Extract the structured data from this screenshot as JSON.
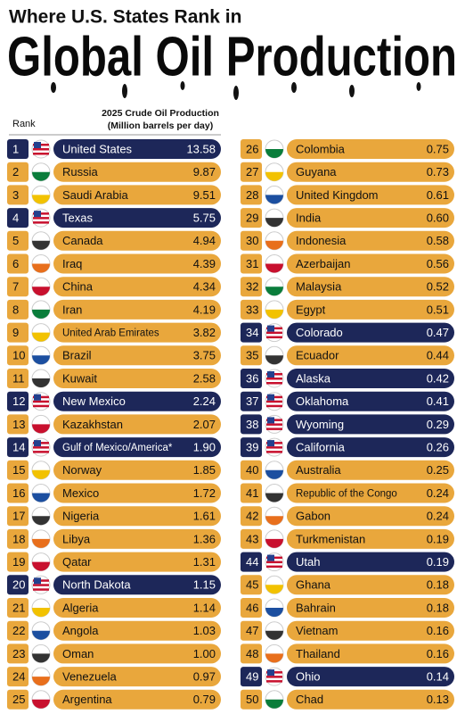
{
  "header": {
    "subtitle": "Where U.S. States Rank in",
    "title": "Global Oil Production"
  },
  "columns": {
    "rank": "Rank",
    "production": "2025 Crude Oil Production",
    "unit": "(Million barrels per day)"
  },
  "rows": [
    {
      "rank": 1,
      "name": "United States",
      "value": "13.58",
      "highlight": true
    },
    {
      "rank": 2,
      "name": "Russia",
      "value": "9.87",
      "highlight": false
    },
    {
      "rank": 3,
      "name": "Saudi Arabia",
      "value": "9.51",
      "highlight": false
    },
    {
      "rank": 4,
      "name": "Texas",
      "value": "5.75",
      "highlight": true
    },
    {
      "rank": 5,
      "name": "Canada",
      "value": "4.94",
      "highlight": false
    },
    {
      "rank": 6,
      "name": "Iraq",
      "value": "4.39",
      "highlight": false
    },
    {
      "rank": 7,
      "name": "China",
      "value": "4.34",
      "highlight": false
    },
    {
      "rank": 8,
      "name": "Iran",
      "value": "4.19",
      "highlight": false
    },
    {
      "rank": 9,
      "name": "United Arab Emirates",
      "value": "3.82",
      "highlight": false
    },
    {
      "rank": 10,
      "name": "Brazil",
      "value": "3.75",
      "highlight": false
    },
    {
      "rank": 11,
      "name": "Kuwait",
      "value": "2.58",
      "highlight": false
    },
    {
      "rank": 12,
      "name": "New Mexico",
      "value": "2.24",
      "highlight": true
    },
    {
      "rank": 13,
      "name": "Kazakhstan",
      "value": "2.07",
      "highlight": false
    },
    {
      "rank": 14,
      "name": "Gulf of Mexico/America*",
      "value": "1.90",
      "highlight": true
    },
    {
      "rank": 15,
      "name": "Norway",
      "value": "1.85",
      "highlight": false
    },
    {
      "rank": 16,
      "name": "Mexico",
      "value": "1.72",
      "highlight": false
    },
    {
      "rank": 17,
      "name": "Nigeria",
      "value": "1.61",
      "highlight": false
    },
    {
      "rank": 18,
      "name": "Libya",
      "value": "1.36",
      "highlight": false
    },
    {
      "rank": 19,
      "name": "Qatar",
      "value": "1.31",
      "highlight": false
    },
    {
      "rank": 20,
      "name": "North Dakota",
      "value": "1.15",
      "highlight": true
    },
    {
      "rank": 21,
      "name": "Algeria",
      "value": "1.14",
      "highlight": false
    },
    {
      "rank": 22,
      "name": "Angola",
      "value": "1.03",
      "highlight": false
    },
    {
      "rank": 23,
      "name": "Oman",
      "value": "1.00",
      "highlight": false
    },
    {
      "rank": 24,
      "name": "Venezuela",
      "value": "0.97",
      "highlight": false
    },
    {
      "rank": 25,
      "name": "Argentina",
      "value": "0.79",
      "highlight": false
    },
    {
      "rank": 26,
      "name": "Colombia",
      "value": "0.75",
      "highlight": false
    },
    {
      "rank": 27,
      "name": "Guyana",
      "value": "0.73",
      "highlight": false
    },
    {
      "rank": 28,
      "name": "United Kingdom",
      "value": "0.61",
      "highlight": false
    },
    {
      "rank": 29,
      "name": "India",
      "value": "0.60",
      "highlight": false
    },
    {
      "rank": 30,
      "name": "Indonesia",
      "value": "0.58",
      "highlight": false
    },
    {
      "rank": 31,
      "name": "Azerbaijan",
      "value": "0.56",
      "highlight": false
    },
    {
      "rank": 32,
      "name": "Malaysia",
      "value": "0.52",
      "highlight": false
    },
    {
      "rank": 33,
      "name": "Egypt",
      "value": "0.51",
      "highlight": false
    },
    {
      "rank": 34,
      "name": "Colorado",
      "value": "0.47",
      "highlight": true
    },
    {
      "rank": 35,
      "name": "Ecuador",
      "value": "0.44",
      "highlight": false
    },
    {
      "rank": 36,
      "name": "Alaska",
      "value": "0.42",
      "highlight": true
    },
    {
      "rank": 37,
      "name": "Oklahoma",
      "value": "0.41",
      "highlight": true
    },
    {
      "rank": 38,
      "name": "Wyoming",
      "value": "0.29",
      "highlight": true
    },
    {
      "rank": 39,
      "name": "California",
      "value": "0.26",
      "highlight": true
    },
    {
      "rank": 40,
      "name": "Australia",
      "value": "0.25",
      "highlight": false
    },
    {
      "rank": 41,
      "name": "Republic of the Congo",
      "value": "0.24",
      "highlight": false
    },
    {
      "rank": 42,
      "name": "Gabon",
      "value": "0.24",
      "highlight": false
    },
    {
      "rank": 43,
      "name": "Turkmenistan",
      "value": "0.19",
      "highlight": false
    },
    {
      "rank": 44,
      "name": "Utah",
      "value": "0.19",
      "highlight": true
    },
    {
      "rank": 45,
      "name": "Ghana",
      "value": "0.18",
      "highlight": false
    },
    {
      "rank": 46,
      "name": "Bahrain",
      "value": "0.18",
      "highlight": false
    },
    {
      "rank": 47,
      "name": "Vietnam",
      "value": "0.16",
      "highlight": false
    },
    {
      "rank": 48,
      "name": "Thailand",
      "value": "0.16",
      "highlight": false
    },
    {
      "rank": 49,
      "name": "Ohio",
      "value": "0.14",
      "highlight": true
    },
    {
      "rank": 50,
      "name": "Chad",
      "value": "0.13",
      "highlight": false
    }
  ]
}
